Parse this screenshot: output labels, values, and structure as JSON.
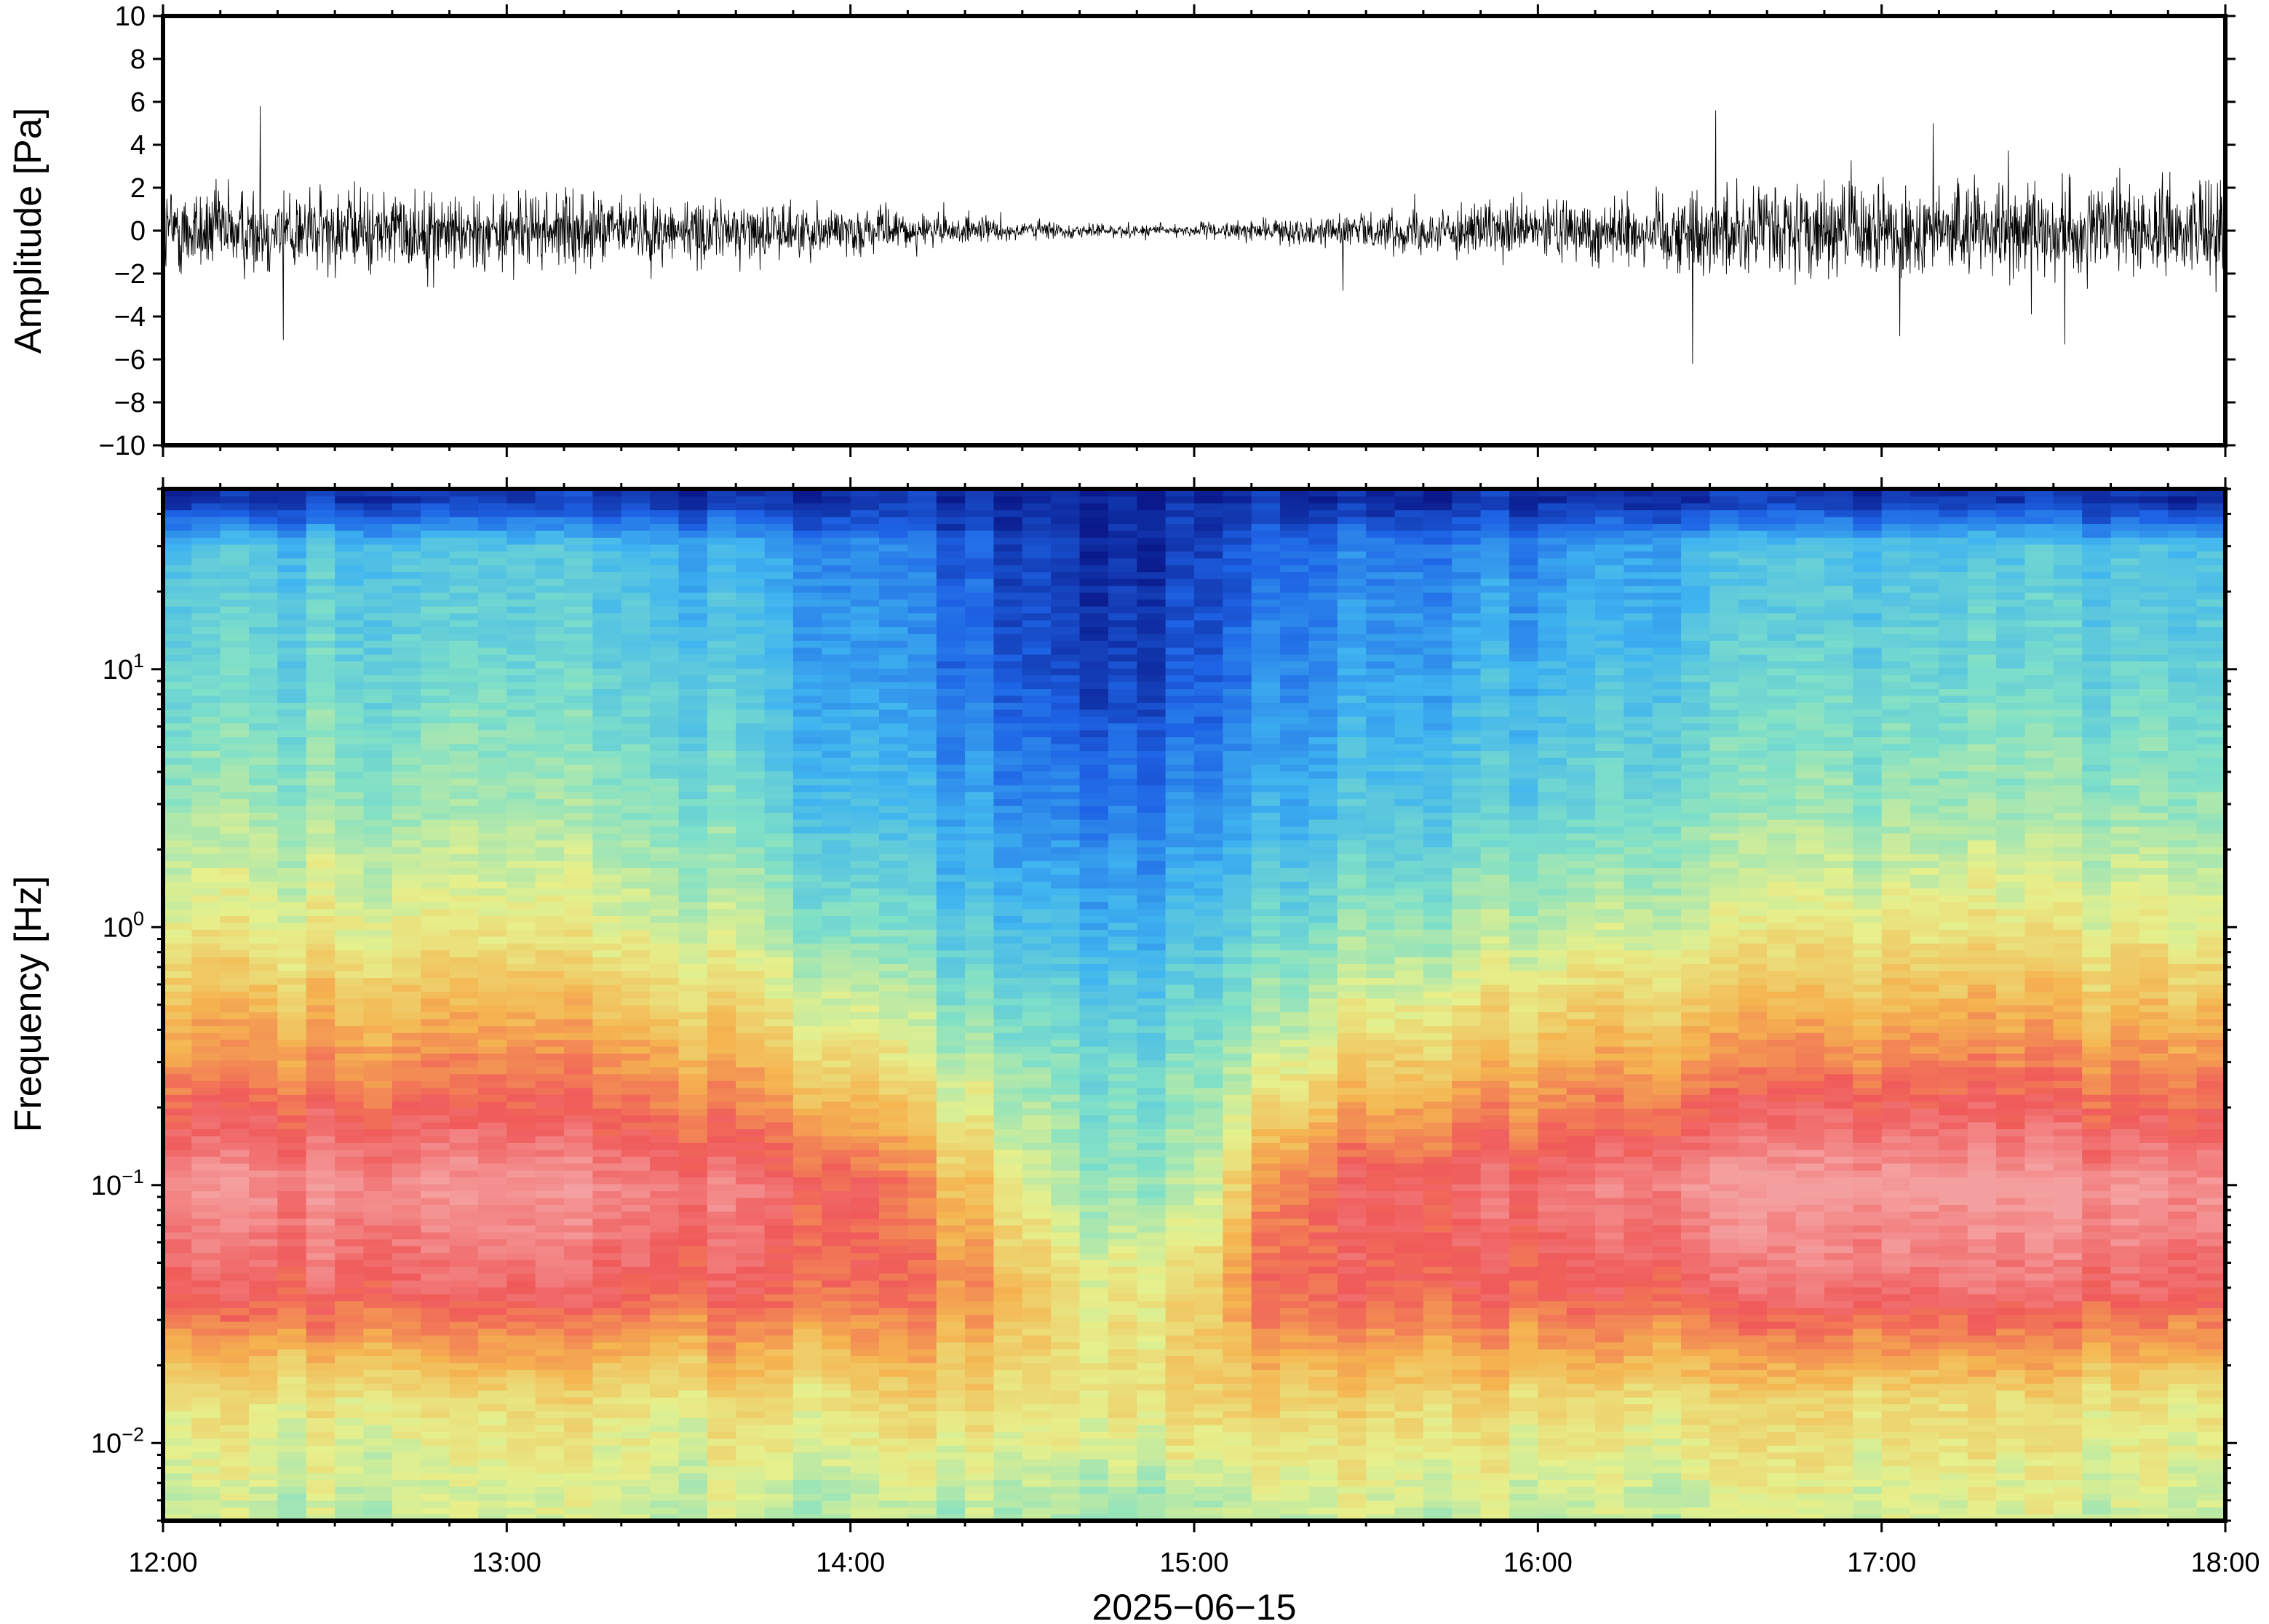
{
  "chart_data": [
    {
      "type": "line",
      "panel": "waveform",
      "ylabel": "Amplitude [Pa]",
      "ylim": [
        -10,
        10
      ],
      "yticks": [
        -10,
        -8,
        -6,
        -4,
        -2,
        0,
        2,
        4,
        6,
        8,
        10
      ],
      "ytick_labels": [
        "−10",
        "−8",
        "−6",
        "−4",
        "−2",
        "0",
        "2",
        "4",
        "6",
        "8",
        "10"
      ],
      "x_range": [
        "12:00",
        "18:00"
      ],
      "color": "#000000",
      "envelope_x": [
        "12:00",
        "12:30",
        "13:00",
        "13:30",
        "14:00",
        "14:20",
        "14:40",
        "15:00",
        "15:15",
        "15:30",
        "16:00",
        "16:30",
        "17:00",
        "17:30",
        "18:00"
      ],
      "envelope_amplitude": [
        2.0,
        1.8,
        1.6,
        1.4,
        1.0,
        0.6,
        0.3,
        0.3,
        0.5,
        0.8,
        1.2,
        1.9,
        2.0,
        1.9,
        2.0
      ],
      "peaks": [
        {
          "x": "12:17",
          "y": 5.8
        },
        {
          "x": "12:21",
          "y": -5.1
        },
        {
          "x": "15:26",
          "y": -2.8
        },
        {
          "x": "16:27",
          "y": -6.2
        },
        {
          "x": "16:31",
          "y": 5.6
        },
        {
          "x": "17:09",
          "y": 5.0
        },
        {
          "x": "17:32",
          "y": -5.3
        }
      ]
    },
    {
      "type": "heatmap",
      "panel": "spectrogram",
      "ylabel": "Frequency [Hz]",
      "yscale": "log",
      "ylim": [
        0.005,
        50
      ],
      "yticks": [
        0.01,
        0.1,
        1,
        10
      ],
      "ytick_labels": [
        {
          "base": "10",
          "exp": "−2"
        },
        {
          "base": "10",
          "exp": "−1"
        },
        {
          "base": "10",
          "exp": "0"
        },
        {
          "base": "10",
          "exp": "1"
        }
      ],
      "xlabel": "2025−06−15",
      "x_range": [
        "12:00",
        "18:00"
      ],
      "xtick_labels": [
        "12:00",
        "13:00",
        "14:00",
        "15:00",
        "16:00",
        "17:00",
        "18:00"
      ],
      "colormap": [
        "#0a1a8c",
        "#1e64e6",
        "#3fb4f0",
        "#7fe0c8",
        "#e6f08c",
        "#f5b450",
        "#f05a5a",
        "#f5a0a0"
      ],
      "time_bins": [
        "12:00",
        "12:30",
        "13:00",
        "13:30",
        "14:00",
        "14:20",
        "14:40",
        "15:00",
        "15:15",
        "15:30",
        "16:00",
        "16:30",
        "17:00",
        "17:30",
        "18:00"
      ],
      "freq_bins_hz": [
        0.006,
        0.015,
        0.04,
        0.1,
        0.3,
        1,
        3,
        10,
        30,
        45
      ],
      "relative_power": [
        [
          0.55,
          0.62,
          0.88,
          0.98,
          0.78,
          0.6,
          0.48,
          0.4,
          0.34,
          0.05
        ],
        [
          0.52,
          0.6,
          0.87,
          0.97,
          0.77,
          0.58,
          0.47,
          0.39,
          0.33,
          0.05
        ],
        [
          0.52,
          0.6,
          0.87,
          0.96,
          0.76,
          0.57,
          0.46,
          0.38,
          0.32,
          0.05
        ],
        [
          0.53,
          0.61,
          0.86,
          0.94,
          0.74,
          0.55,
          0.44,
          0.36,
          0.3,
          0.05
        ],
        [
          0.52,
          0.62,
          0.84,
          0.86,
          0.64,
          0.44,
          0.32,
          0.26,
          0.22,
          0.05
        ],
        [
          0.52,
          0.64,
          0.8,
          0.7,
          0.52,
          0.36,
          0.26,
          0.18,
          0.14,
          0.05
        ],
        [
          0.5,
          0.62,
          0.6,
          0.48,
          0.42,
          0.3,
          0.2,
          0.08,
          0.05,
          0.03
        ],
        [
          0.5,
          0.64,
          0.62,
          0.48,
          0.42,
          0.3,
          0.2,
          0.1,
          0.06,
          0.03
        ],
        [
          0.54,
          0.66,
          0.86,
          0.8,
          0.56,
          0.4,
          0.28,
          0.22,
          0.16,
          0.04
        ],
        [
          0.56,
          0.66,
          0.86,
          0.88,
          0.66,
          0.46,
          0.34,
          0.26,
          0.2,
          0.04
        ],
        [
          0.54,
          0.64,
          0.86,
          0.92,
          0.72,
          0.52,
          0.38,
          0.3,
          0.22,
          0.05
        ],
        [
          0.54,
          0.63,
          0.88,
          0.98,
          0.76,
          0.56,
          0.44,
          0.36,
          0.3,
          0.05
        ],
        [
          0.55,
          0.62,
          0.9,
          0.99,
          0.78,
          0.58,
          0.46,
          0.38,
          0.32,
          0.05
        ],
        [
          0.55,
          0.62,
          0.9,
          0.99,
          0.78,
          0.59,
          0.47,
          0.39,
          0.33,
          0.05
        ],
        [
          0.55,
          0.62,
          0.89,
          0.98,
          0.78,
          0.59,
          0.47,
          0.39,
          0.33,
          0.05
        ]
      ]
    }
  ]
}
